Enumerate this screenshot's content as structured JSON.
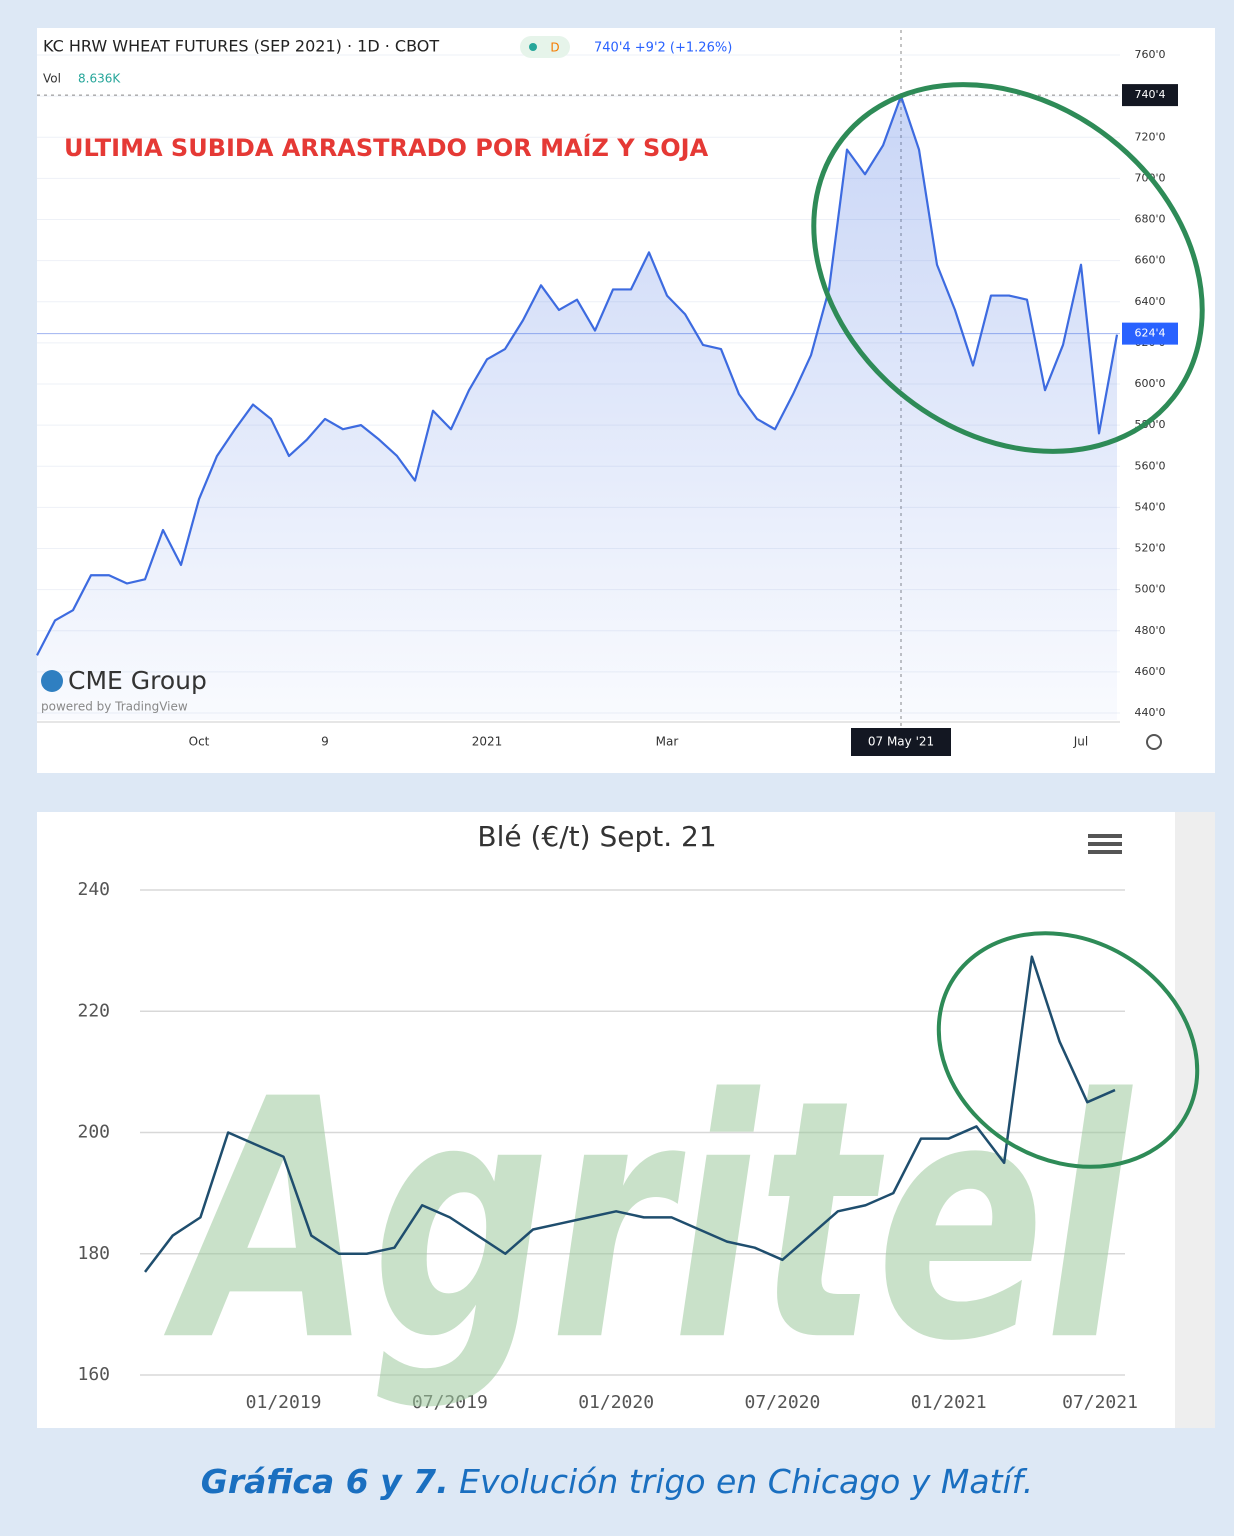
{
  "chart_data": [
    {
      "type": "line",
      "title": "KC HRW WHEAT FUTURES (SEP 2021) · 1D · CBOT",
      "interval_badge": "D",
      "quote": "740'4 +9'2 (+1.26%)",
      "volume_label": "Vol",
      "volume_value": "8.636K",
      "annotation": "ULTIMA SUBIDA ARRASTRADO POR MAÍZ Y SOJA",
      "logo": "CME Group",
      "credit": "powered by TradingView",
      "categories": [
        null,
        null,
        null,
        null,
        null,
        null,
        null,
        null,
        null,
        "Oct",
        null,
        null,
        null,
        null,
        null,
        null,
        "9",
        null,
        null,
        null,
        null,
        null,
        null,
        null,
        null,
        "2021",
        null,
        null,
        null,
        null,
        null,
        null,
        null,
        null,
        null,
        "Mar",
        null,
        null,
        null,
        null,
        null,
        null,
        null,
        null,
        null,
        null,
        null,
        null,
        "07 May '21",
        null,
        null,
        null,
        null,
        null,
        null,
        null,
        null,
        null,
        "Jul",
        null,
        null
      ],
      "series": [
        {
          "name": "KC HRW Wheat",
          "color": "#3d6be0",
          "values": [
            468,
            485,
            490,
            507,
            507,
            503,
            505,
            529,
            512,
            544,
            565,
            578,
            590,
            583,
            565,
            573,
            583,
            578,
            580,
            573,
            565,
            553,
            587,
            578,
            597,
            612,
            617,
            631,
            648,
            636,
            641,
            626,
            646,
            646,
            664,
            643,
            634,
            619,
            617,
            595,
            583,
            578,
            595,
            614,
            646,
            714,
            702,
            716,
            740,
            714,
            658,
            636,
            609,
            643,
            643,
            641,
            597,
            619,
            658,
            576,
            624
          ]
        }
      ],
      "ylim": [
        440,
        760
      ],
      "yticks": [
        {
          "value": 440,
          "label": "440'0"
        },
        {
          "value": 460,
          "label": "460'0"
        },
        {
          "value": 480,
          "label": "480'0"
        },
        {
          "value": 500,
          "label": "500'0"
        },
        {
          "value": 520,
          "label": "520'0"
        },
        {
          "value": 540,
          "label": "540'0"
        },
        {
          "value": 560,
          "label": "560'0"
        },
        {
          "value": 580,
          "label": "580'0"
        },
        {
          "value": 600,
          "label": "600'0"
        },
        {
          "value": 620,
          "label": "620'0"
        },
        {
          "value": 640,
          "label": "640'0"
        },
        {
          "value": 660,
          "label": "660'0"
        },
        {
          "value": 680,
          "label": "680'0"
        },
        {
          "value": 700,
          "label": "700'0"
        },
        {
          "value": 720,
          "label": "720'0"
        },
        {
          "value": 740,
          "label": "740'0"
        },
        {
          "value": 760,
          "label": "760'0"
        }
      ],
      "price_labels": [
        {
          "value": 740.5,
          "label": "740'4",
          "color": "#131722"
        },
        {
          "value": 624.5,
          "label": "624'4",
          "color": "#2962ff"
        }
      ],
      "grid": true
    },
    {
      "type": "line",
      "title": "Blé (€/t) Sept. 21",
      "watermark": "Agritel",
      "x": [
        "2018-08",
        "2018-09",
        "2018-10",
        "2018-11",
        "2018-12",
        "2019-01",
        "2019-02",
        "2019-03",
        "2019-04",
        "2019-05",
        "2019-06",
        "2019-07",
        "2019-08",
        "2019-09",
        "2019-10",
        "2019-11",
        "2019-12",
        "2020-01",
        "2020-02",
        "2020-03",
        "2020-04",
        "2020-05",
        "2020-06",
        "2020-07",
        "2020-08",
        "2020-09",
        "2020-10",
        "2020-11",
        "2020-12",
        "2021-01",
        "2021-02",
        "2021-03",
        "2021-04",
        "2021-05",
        "2021-06",
        "2021-07"
      ],
      "series": [
        {
          "name": "Blé Sept. 21",
          "color": "#1f4e6e",
          "values": [
            177,
            183,
            186,
            200,
            198,
            196,
            183,
            180,
            180,
            181,
            188,
            186,
            183,
            180,
            184,
            185,
            186,
            187,
            186,
            186,
            184,
            182,
            181,
            179,
            183,
            187,
            188,
            190,
            199,
            199,
            201,
            195,
            229,
            215,
            205,
            207
          ]
        }
      ],
      "xlim": [
        "2018-08",
        "2021-07"
      ],
      "xticks": [
        {
          "value": "2019-01",
          "label": "01/2019"
        },
        {
          "value": "2019-07",
          "label": "07/2019"
        },
        {
          "value": "2020-01",
          "label": "01/2020"
        },
        {
          "value": "2020-07",
          "label": "07/2020"
        },
        {
          "value": "2021-01",
          "label": "01/2021"
        },
        {
          "value": "2021-07",
          "label": "07/2021"
        }
      ],
      "ylim": [
        160,
        240
      ],
      "yticks": [
        160,
        180,
        200,
        220,
        240
      ],
      "grid": true
    }
  ],
  "caption": {
    "bold": "Gráfica 6 y 7.",
    "text": " Evolución trigo en Chicago y Matíf."
  }
}
